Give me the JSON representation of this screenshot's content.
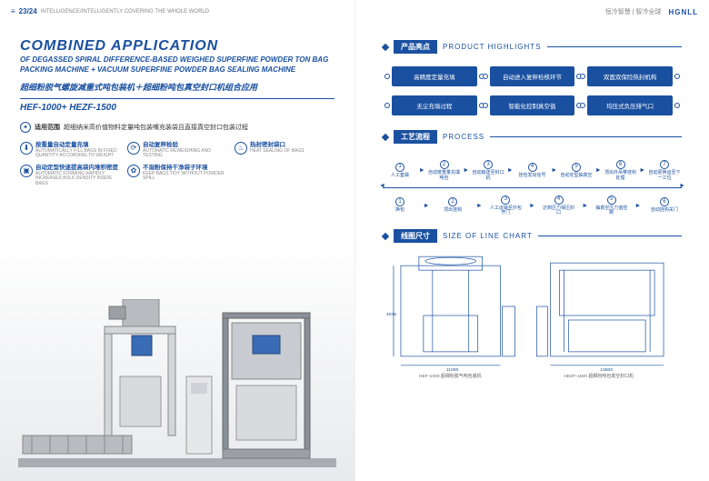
{
  "header": {
    "left_code": "23/24",
    "left_tag": "INTELLIGENCE/INTELLIGENTLY COVERING THE WHOLE WORLD",
    "right_tag": "恒冷智慧 | 智冷全球",
    "brand": "HGNLL"
  },
  "title": {
    "en_main": "COMBINED APPLICATION",
    "en_sub": "OF DEGASSED SPIRAL DIFFERENCE-BASED WEIGHED SUPERFINE POWDER TON BAG PACKING MACHINE + VACUUM SUPERFINE POWDER BAG SEALING MACHINE",
    "cn": "超细粉脱气螺旋减重式吨包装机＋超细粉吨包真空封口机组合应用",
    "models": "HEF-1000+  HEZF-1500"
  },
  "scope": {
    "label": "适用范围",
    "text": "超细纳米高价值物料定量吨包装嘴充装袋且直接真空封口包装过程"
  },
  "features": [
    {
      "cn": "按重量自动定量充填",
      "en": "AUTOMATICALLY FILL BAGS IN FIXED QUANTITY ACCORDING TO WEIGHT"
    },
    {
      "cn": "自动复秤检验",
      "en": "AUTOMATIC REWEIGHING AND TESTING"
    },
    {
      "cn": "热封密封袋口",
      "en": "HEAT SEALING OF BAGS"
    },
    {
      "cn": "自动定型快速提高袋内堆积密度",
      "en": "AUTOMATIC FORMING RAPIDLY INCREASES BULK DENSITY INSIDE BAGS"
    },
    {
      "cn": "不溢粉保持干净袋子环境",
      "en": "KEEP BAGS TIDY WITHOUT POWDER SPILL"
    }
  ],
  "sections": {
    "highlights": {
      "cn": "产品亮点",
      "en": "PRODUCT HIGHLIGHTS"
    },
    "process": {
      "cn": "工艺流程",
      "en": "PROCESS"
    },
    "chart": {
      "cn": "线图尺寸",
      "en": "SIZE OF LINE CHART"
    }
  },
  "highlights": [
    "高精度定量充填",
    "自动进入复秤检核环节",
    "双面双保险热封机构",
    "无尘充填过程",
    "智能化控制真空值",
    "均压式负压排气口"
  ],
  "process_top": [
    "人工套袋",
    "自动按重量充填吨包",
    "自动输送至封口机",
    "挂包发出信号",
    "自动定型抽真空",
    "顶出外吊带挂钩处理",
    "自动更换运至下一工位"
  ],
  "process_bottom": [
    "换包",
    "顶出挂钩",
    "人工运输至外包开门",
    "达到压力保压封口",
    "抽真空压力值控制",
    "自动挂钩关门"
  ],
  "colors": {
    "primary": "#1a50a0",
    "muted": "#888888",
    "bg_grad_end": "#e8eaed",
    "machine_gray": "#b8bcc0",
    "machine_light": "#d4d7da",
    "machine_blue": "#3a6bb5"
  },
  "chart_dims": {
    "w1": "11000",
    "w2": "13000",
    "h": "4035",
    "label1": "HEF-1000 超细粉脱气吨包装机",
    "label2": "HEZF-1500 超细粉吨包真空封口机"
  }
}
